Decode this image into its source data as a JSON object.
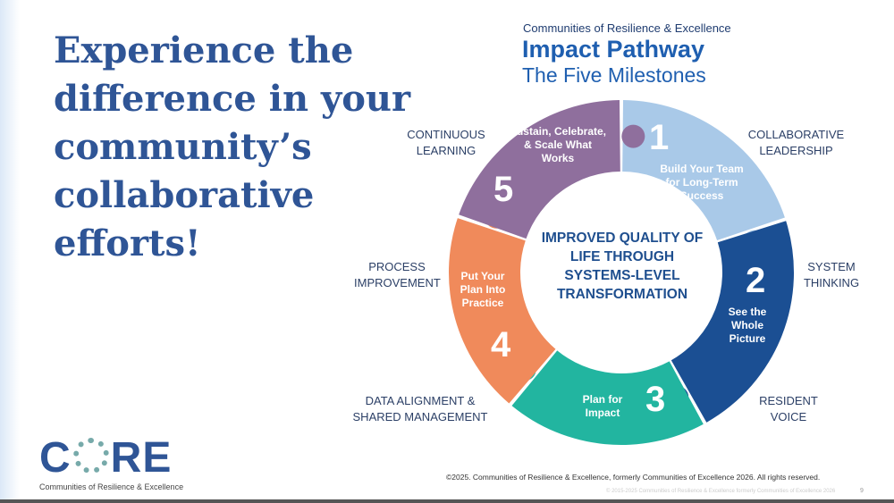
{
  "headline": "Experience the difference in your community’s collaborative efforts!",
  "title": {
    "subtitle": "Communities of Resilience & Excellence",
    "main": "Impact Pathway",
    "tagline": "The Five Milestones"
  },
  "center_text": "IMPROVED QUALITY OF LIFE THROUGH SYSTEMS-LEVEL TRANSFORMATION",
  "milestones": [
    {
      "number": "1",
      "text": "Build Your Team for Long-Term Success",
      "color": "#a9c9e8"
    },
    {
      "number": "2",
      "text": "See the Whole Picture",
      "color": "#1b4f93"
    },
    {
      "number": "3",
      "text": "Plan for Impact",
      "color": "#22b5a0"
    },
    {
      "number": "4",
      "text": "Put Your Plan Into Practice",
      "color": "#f08a5b"
    },
    {
      "number": "5",
      "text": "Sustain, Celebrate, & Scale What Works",
      "color": "#8f6f9d"
    }
  ],
  "outer_labels": {
    "collaborative_leadership": "COLLABORATIVE LEADERSHIP",
    "system_thinking": "SYSTEM THINKING",
    "resident_voice": "RESIDENT VOICE",
    "data_alignment": "DATA ALIGNMENT & SHARED MANAGEMENT",
    "process_improvement": "PROCESS IMPROVEMENT",
    "continuous_learning": "CONTINUOUS LEARNING"
  },
  "logo": {
    "word": "CORE",
    "tagline": "Communities of Resilience & Excellence"
  },
  "footer": {
    "copyright": "©2025. Communities of Resilience & Excellence, formerly Communities of Excellence 2026. All rights reserved.",
    "faint_copyright": "© 2015-2025 Communities of Resilience & Excellence formerly Communities of Excellence 2026",
    "page_number": "9"
  },
  "colors": {
    "heading": "#2f5596",
    "title": "#1f5fb0"
  }
}
